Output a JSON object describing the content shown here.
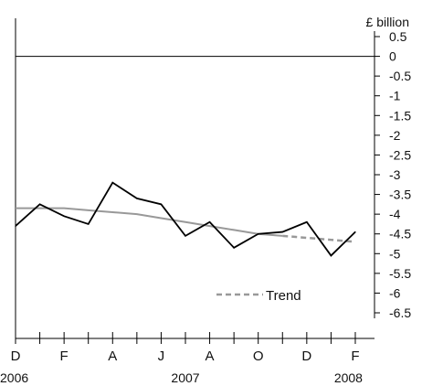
{
  "chart_data": {
    "type": "line",
    "unit_label": "£ billion",
    "ylim": [
      -6.5,
      0.5
    ],
    "y_ticks": [
      "0.5",
      "0",
      "-0.5",
      "-1",
      "-1.5",
      "-2",
      "-2.5",
      "-3",
      "-3.5",
      "-4",
      "-4.5",
      "-5",
      "-5.5",
      "-6",
      "-6.5"
    ],
    "x_tick_labels": [
      "D",
      "F",
      "A",
      "J",
      "A",
      "O",
      "D",
      "F"
    ],
    "year_labels": [
      "2006",
      "2007",
      "2008"
    ],
    "x": [
      "2006-12",
      "2007-01",
      "2007-02",
      "2007-03",
      "2007-04",
      "2007-05",
      "2007-06",
      "2007-07",
      "2007-08",
      "2007-09",
      "2007-10",
      "2007-11",
      "2007-12",
      "2008-01",
      "2008-02"
    ],
    "series": [
      {
        "name": "",
        "color": "#000000",
        "values": [
          -4.3,
          -3.75,
          -4.05,
          -4.25,
          -3.2,
          -3.6,
          -3.75,
          -4.55,
          -4.2,
          -4.85,
          -4.5,
          -4.45,
          -4.2,
          -5.05,
          -4.45
        ]
      },
      {
        "name": "Trend",
        "color": "#999999",
        "solid_until_index": 11,
        "values": [
          -3.85,
          -3.85,
          -3.85,
          -3.9,
          -3.95,
          -4.0,
          -4.1,
          -4.2,
          -4.3,
          -4.4,
          -4.5,
          -4.55,
          -4.6,
          -4.65,
          -4.7
        ]
      }
    ],
    "legend": {
      "label": "Trend",
      "placement": "bottom-right"
    },
    "grid": false
  }
}
